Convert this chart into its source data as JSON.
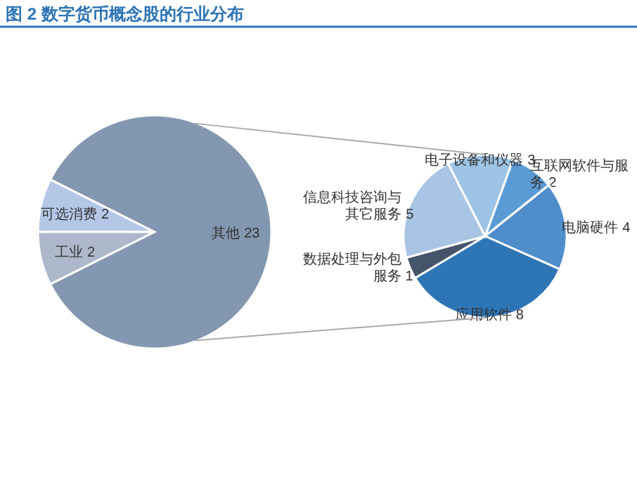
{
  "chart_data": [
    {
      "type": "pie",
      "title": "图 2 数字货币概念股的行业分布",
      "categories": [
        "可选消费",
        "工业",
        "其他"
      ],
      "values": [
        2,
        2,
        23
      ],
      "colors": [
        "#b4c7e7",
        "#adb9ca",
        "#8497b0"
      ],
      "data_labels": true
    },
    {
      "type": "pie",
      "categories": [
        "互联网软件与服务",
        "电脑硬件",
        "应用软件",
        "数据处理与外包服务",
        "信息科技咨询与其它服务",
        "电子设备和仪器"
      ],
      "values": [
        2,
        4,
        8,
        1,
        5,
        3
      ],
      "colors": [
        "#5b9bd5",
        "#4f8dcb",
        "#2e75b6",
        "#44546a",
        "#a9c4e4",
        "#9dc3e6"
      ],
      "data_labels": true
    }
  ]
}
